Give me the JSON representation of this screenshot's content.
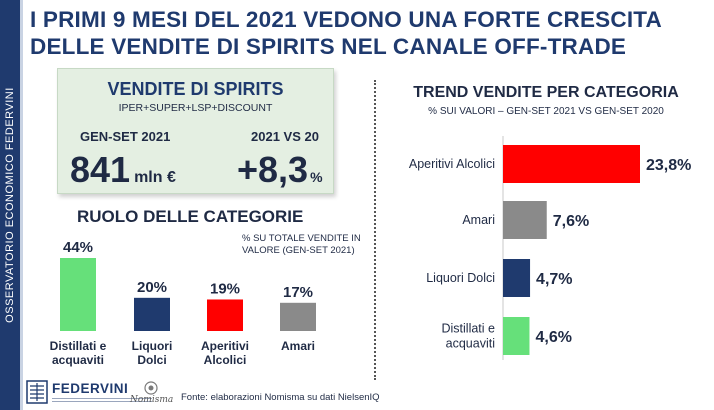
{
  "sidebar": {
    "text": "OSSERVATORIO ECONOMICO  FEDERVINI"
  },
  "title": "I PRIMI 9 MESI DEL 2021 VEDONO UNA FORTE CRESCITA DELLE VENDITE DI SPIRITS NEL CANALE OFF-TRADE",
  "kpi": {
    "title": "VENDITE DI SPIRITS",
    "subtitle": "IPER+SUPER+LSP+DISCOUNT",
    "period_label": "GEN-SET 2021",
    "compare_label": "2021 VS 20",
    "sales_value": "841",
    "sales_unit": "mln €",
    "growth_value": "+8,3",
    "growth_unit": "%"
  },
  "colors": {
    "green": "#66e07a",
    "navy": "#1f3a6e",
    "red": "#ff0000",
    "gray": "#8a8a8a"
  },
  "chart_data": [
    {
      "type": "bar",
      "title": "RUOLO DELLE CATEGORIE",
      "note": "% SU TOTALE VENDITE IN VALORE (GEN-SET 2021)",
      "categories": [
        "Distillati e acquaviti",
        "Liquori Dolci",
        "Aperitivi Alcolici",
        "Amari"
      ],
      "values": [
        44,
        20,
        19,
        17
      ],
      "value_labels": [
        "44%",
        "20%",
        "19%",
        "17%"
      ],
      "colors": [
        "#66e07a",
        "#1f3a6e",
        "#ff0000",
        "#8a8a8a"
      ],
      "ylim": [
        0,
        44
      ]
    },
    {
      "type": "bar",
      "orientation": "horizontal",
      "title": "TREND VENDITE PER CATEGORIA",
      "subtitle": "% SUI VALORI – GEN-SET 2021 VS GEN-SET 2020",
      "categories": [
        "Aperitivi Alcolici",
        "Amari",
        "Liquori Dolci",
        "Distillati e acquaviti"
      ],
      "values": [
        23.8,
        7.6,
        4.7,
        4.6
      ],
      "value_labels": [
        "23,8%",
        "7,6%",
        "4,7%",
        "4,6%"
      ],
      "colors": [
        "#ff0000",
        "#8a8a8a",
        "#1f3a6e",
        "#66e07a"
      ],
      "xlim": [
        0,
        23.8
      ]
    }
  ],
  "footer": {
    "logo_name": "FEDERVINI",
    "partner_logo": "Nomisma",
    "source": "Fonte: elaborazioni Nomisma su dati NielsenIQ"
  }
}
